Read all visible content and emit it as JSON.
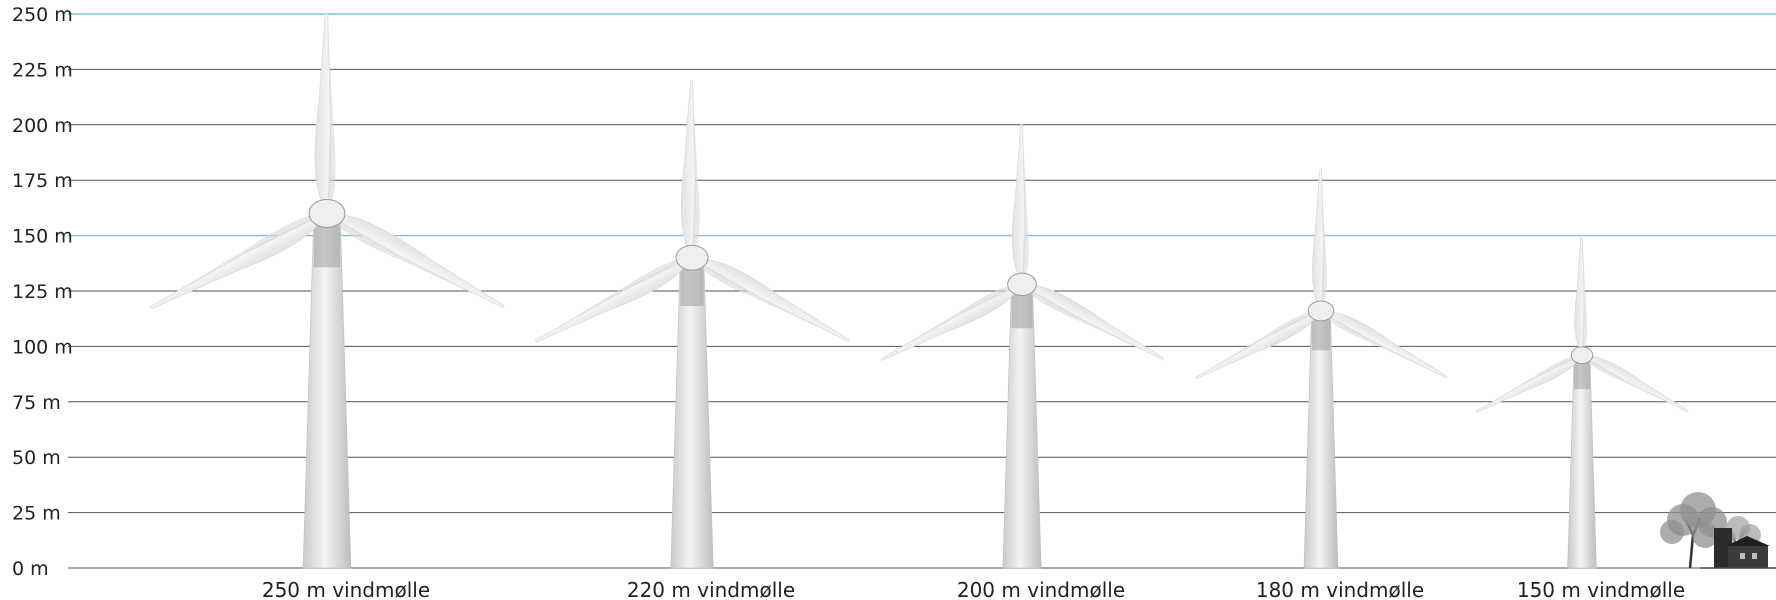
{
  "chart_data": {
    "type": "scale-comparison",
    "y_unit": "m",
    "ylim": [
      0,
      250
    ],
    "y_ticks": [
      {
        "value": 0,
        "label": "0 m"
      },
      {
        "value": 25,
        "label": "25 m"
      },
      {
        "value": 50,
        "label": "50 m"
      },
      {
        "value": 75,
        "label": "75 m"
      },
      {
        "value": 100,
        "label": "100 m"
      },
      {
        "value": 125,
        "label": "125 m"
      },
      {
        "value": 150,
        "label": "150 m"
      },
      {
        "value": 175,
        "label": "175 m"
      },
      {
        "value": 200,
        "label": "200 m"
      },
      {
        "value": 225,
        "label": "225 m"
      },
      {
        "value": 250,
        "label": "250 m"
      }
    ],
    "highlighted_gridlines": [
      150,
      250
    ],
    "turbines": [
      {
        "label": "250 m vindmølle",
        "total_height": 250,
        "hub_height": 160
      },
      {
        "label": "220 m vindmølle",
        "total_height": 220,
        "hub_height": 140
      },
      {
        "label": "200 m vindmølle",
        "total_height": 200,
        "hub_height": 128
      },
      {
        "label": "180 m vindmølle",
        "total_height": 180,
        "hub_height": 116
      },
      {
        "label": "150 m vindmølle",
        "total_height": 150,
        "hub_height": 96
      }
    ],
    "reference_objects": [
      "tree-and-house"
    ]
  },
  "colors": {
    "gridline": "#555555",
    "gridline_highlight": "#7ec3dd",
    "turbine_light": "#eeeeee",
    "turbine_mid": "#cfcfcf",
    "turbine_dark": "#9a9a9a",
    "text": "#222222"
  }
}
